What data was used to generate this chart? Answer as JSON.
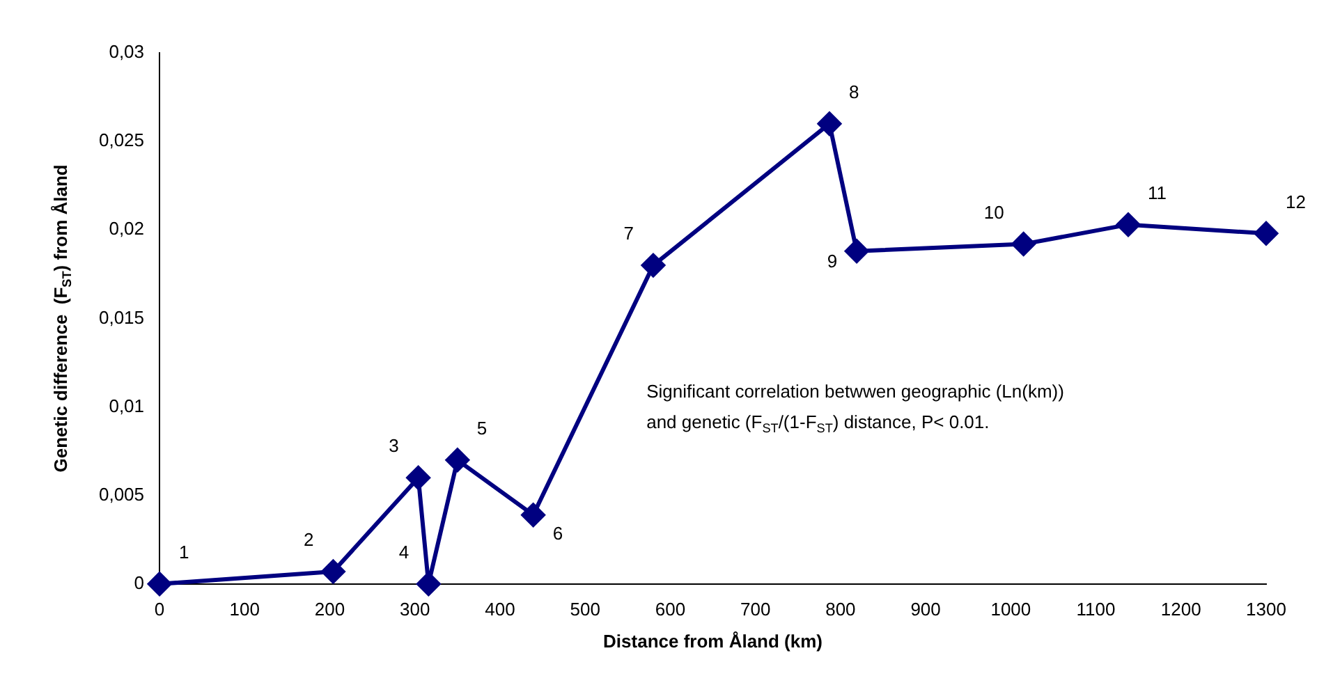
{
  "chart_data": {
    "type": "line",
    "xlabel": "Distance from Åland (km)",
    "ylabel": "Genetic difference  (F$_{ST}$) from Åland",
    "x": [
      0,
      204,
      304,
      316,
      350,
      439,
      580,
      787,
      819,
      1015,
      1138,
      1300
    ],
    "series": [
      {
        "color": "#000080",
        "values": [
          0,
          0.0007,
          0.006,
          0,
          0.007,
          0.0039,
          0.018,
          0.026,
          0.0188,
          0.0192,
          0.0203,
          0.0198
        ]
      }
    ],
    "xlim": [
      0,
      1300
    ],
    "xticks": [
      0,
      100,
      200,
      300,
      400,
      500,
      600,
      700,
      800,
      900,
      1000,
      1100,
      1200,
      1300
    ],
    "ylim": [
      0,
      0.03
    ],
    "yticks": [
      0,
      {
        "value": 0.005,
        "label": "0,005"
      },
      {
        "value": 0.01,
        "label": "0,01"
      },
      {
        "value": 0.015,
        "label": "0,015"
      },
      {
        "value": 0.02,
        "label": "0,02"
      },
      {
        "value": 0.025,
        "label": "0,025"
      },
      {
        "value": 0.03,
        "label": "0,03"
      }
    ],
    "grid": false,
    "legend": false,
    "marker": "diamond",
    "line_style": "solid",
    "annotations": [
      {
        "text": "1",
        "x": 0,
        "y": 0
      },
      {
        "text": "2",
        "x": 204,
        "y": 0.0007
      },
      {
        "text": "3",
        "x": 304,
        "y": 0.006
      },
      {
        "text": "4",
        "x": 316,
        "y": 0
      },
      {
        "text": "5",
        "x": 350,
        "y": 0.007
      },
      {
        "text": "6",
        "x": 439,
        "y": 0.0039
      },
      {
        "text": "7",
        "x": 580,
        "y": 0.018
      },
      {
        "text": "8",
        "x": 787,
        "y": 0.026
      },
      {
        "text": "9",
        "x": 819,
        "y": 0.0188
      },
      {
        "text": "10",
        "x": 1015,
        "y": 0.0192
      },
      {
        "text": "11",
        "x": 1138,
        "y": 0.0203
      },
      {
        "text": "12",
        "x": 1300,
        "y": 0.0198
      },
      "Significant correlation betwwen geographic (Ln(km))\nand genetic (F$_{ST}$/(1-F$_{ST}$) distance, P< 0.01."
    ]
  }
}
